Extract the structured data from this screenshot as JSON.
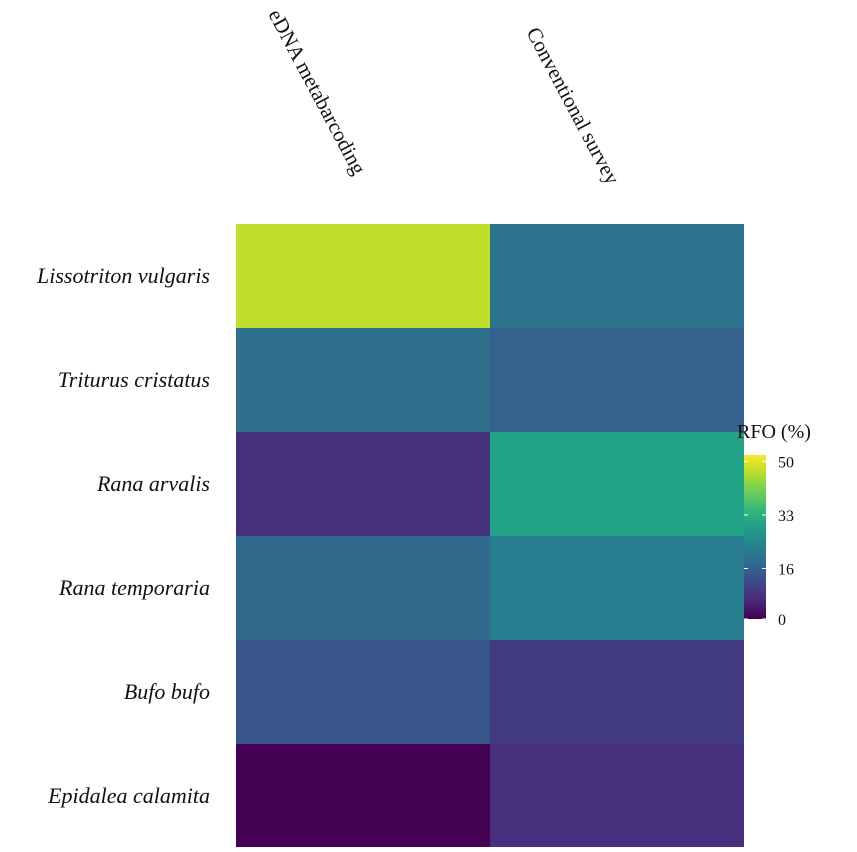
{
  "chart_data": {
    "type": "heatmap",
    "columns": [
      "eDNA metabarcoding",
      "Conventional survey"
    ],
    "rows": [
      "Lissotriton vulgaris",
      "Triturus cristatus",
      "Rana arvalis",
      "Rana temporaria",
      "Bufo bufo",
      "Epidalea calamita"
    ],
    "values": [
      [
        47,
        20
      ],
      [
        19,
        16
      ],
      [
        7,
        30
      ],
      [
        18,
        22
      ],
      [
        14,
        9
      ],
      [
        0,
        7
      ]
    ],
    "legend": {
      "title": "RFO (%)",
      "ticks": [
        50,
        33,
        16,
        0
      ],
      "range": [
        0,
        52
      ],
      "colormap": "viridis"
    }
  }
}
